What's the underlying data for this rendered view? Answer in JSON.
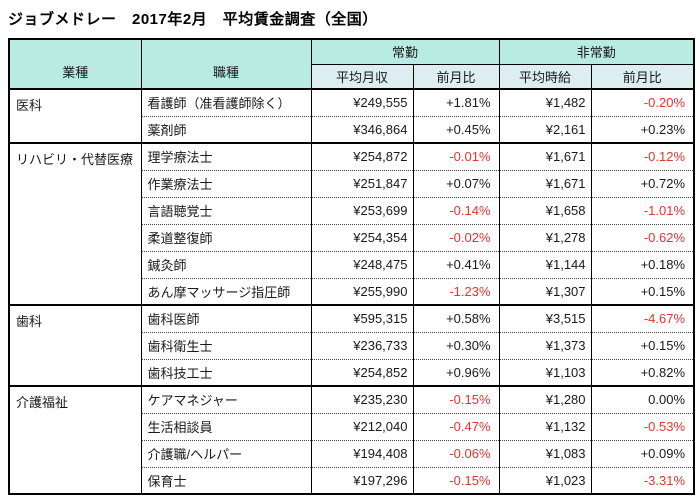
{
  "title": "ジョブメドレー　2017年2月　平均賃金調査（全国）",
  "colors": {
    "header_group_bg": "#b8ece3",
    "header_sub_bg": "#dceef2",
    "negative_value": "#e5342e",
    "border": "#000000"
  },
  "chart_data": {
    "type": "table",
    "title": "ジョブメドレー　2017年2月　平均賃金調査（全国）",
    "row_headers": [
      "業種",
      "職種"
    ],
    "column_groups": [
      {
        "label": "常勤",
        "columns": [
          "平均月収",
          "前月比"
        ]
      },
      {
        "label": "非常勤",
        "columns": [
          "平均時給",
          "前月比"
        ]
      }
    ],
    "groups": [
      {
        "industry": "医科",
        "rows": [
          {
            "job": "看護師（准看護師除く）",
            "monthly": "¥249,555",
            "monthly_mom": "+1.81%",
            "hourly": "¥1,482",
            "hourly_mom": "-0.20%"
          },
          {
            "job": "薬剤師",
            "monthly": "¥346,864",
            "monthly_mom": "+0.45%",
            "hourly": "¥2,161",
            "hourly_mom": "+0.23%"
          }
        ]
      },
      {
        "industry": "リハビリ・代替医療",
        "rows": [
          {
            "job": "理学療法士",
            "monthly": "¥254,872",
            "monthly_mom": "-0.01%",
            "hourly": "¥1,671",
            "hourly_mom": "-0.12%"
          },
          {
            "job": "作業療法士",
            "monthly": "¥251,847",
            "monthly_mom": "+0.07%",
            "hourly": "¥1,671",
            "hourly_mom": "+0.72%"
          },
          {
            "job": "言語聴覚士",
            "monthly": "¥253,699",
            "monthly_mom": "-0.14%",
            "hourly": "¥1,658",
            "hourly_mom": "-1.01%"
          },
          {
            "job": "柔道整復師",
            "monthly": "¥254,354",
            "monthly_mom": "-0.02%",
            "hourly": "¥1,278",
            "hourly_mom": "-0.62%"
          },
          {
            "job": "鍼灸師",
            "monthly": "¥248,475",
            "monthly_mom": "+0.41%",
            "hourly": "¥1,144",
            "hourly_mom": "+0.18%"
          },
          {
            "job": "あん摩マッサージ指圧師",
            "monthly": "¥255,990",
            "monthly_mom": "-1.23%",
            "hourly": "¥1,307",
            "hourly_mom": "+0.15%"
          }
        ]
      },
      {
        "industry": "歯科",
        "rows": [
          {
            "job": "歯科医師",
            "monthly": "¥595,315",
            "monthly_mom": "+0.58%",
            "hourly": "¥3,515",
            "hourly_mom": "-4.67%"
          },
          {
            "job": "歯科衛生士",
            "monthly": "¥236,733",
            "monthly_mom": "+0.30%",
            "hourly": "¥1,373",
            "hourly_mom": "+0.15%"
          },
          {
            "job": "歯科技工士",
            "monthly": "¥254,852",
            "monthly_mom": "+0.96%",
            "hourly": "¥1,103",
            "hourly_mom": "+0.82%"
          }
        ]
      },
      {
        "industry": "介護福祉",
        "rows": [
          {
            "job": "ケアマネジャー",
            "monthly": "¥235,230",
            "monthly_mom": "-0.15%",
            "hourly": "¥1,280",
            "hourly_mom": "0.00%"
          },
          {
            "job": "生活相談員",
            "monthly": "¥212,040",
            "monthly_mom": "-0.47%",
            "hourly": "¥1,132",
            "hourly_mom": "-0.53%"
          },
          {
            "job": "介護職/ヘルパー",
            "monthly": "¥194,408",
            "monthly_mom": "-0.06%",
            "hourly": "¥1,083",
            "hourly_mom": "+0.09%"
          },
          {
            "job": "保育士",
            "monthly": "¥197,296",
            "monthly_mom": "-0.15%",
            "hourly": "¥1,023",
            "hourly_mom": "-3.31%"
          }
        ]
      }
    ]
  }
}
